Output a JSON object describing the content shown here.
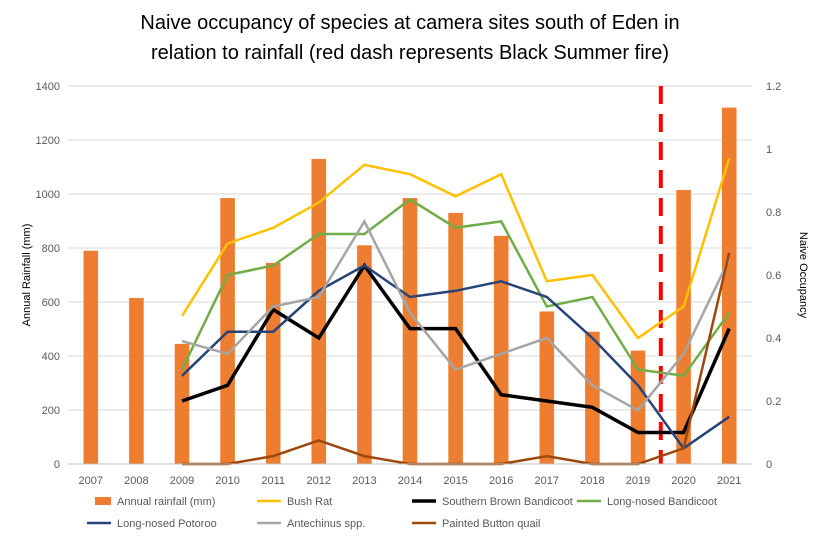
{
  "chart_data": {
    "type": "bar+line",
    "title_lines": [
      "Naive occupancy of species at camera sites south of Eden in",
      "relation to rainfall (red dash represents Black Summer fire)"
    ],
    "categories": [
      "2007",
      "2008",
      "2009",
      "2010",
      "2011",
      "2012",
      "2013",
      "2014",
      "2015",
      "2016",
      "2017",
      "2018",
      "2019",
      "2020",
      "2021"
    ],
    "ylabel_left": "Annual Rainfall (mm)",
    "ylabel_right": "Naive Occupancy",
    "ylim_left": [
      0,
      1400
    ],
    "ylim_right": [
      0,
      1.2
    ],
    "yticks_left": [
      "0",
      "200",
      "400",
      "600",
      "800",
      "1000",
      "1200",
      "1400"
    ],
    "yticks_right": [
      "0",
      "0.2",
      "0.4",
      "0.6",
      "0.8",
      "1",
      "1.2"
    ],
    "bars": {
      "name": "Annual rainfall (mm)",
      "color": "#ED7D31",
      "values": [
        790,
        615,
        445,
        985,
        745,
        1130,
        810,
        985,
        930,
        845,
        565,
        490,
        420,
        1015,
        1320
      ]
    },
    "series": [
      {
        "name": "Bush Rat",
        "color": "#FFC000",
        "width": 2.5,
        "values": [
          null,
          null,
          0.47,
          0.7,
          0.75,
          0.83,
          0.95,
          0.92,
          0.85,
          0.92,
          0.58,
          0.6,
          0.4,
          0.5,
          0.97
        ]
      },
      {
        "name": "Southern Brown Bandicoot",
        "color": "#000000",
        "width": 3.5,
        "values": [
          null,
          null,
          0.2,
          0.25,
          0.49,
          0.4,
          0.63,
          0.43,
          0.43,
          0.22,
          0.2,
          0.18,
          0.1,
          0.1,
          0.43
        ]
      },
      {
        "name": "Long-nosed Bandicoot",
        "color": "#70AD47",
        "width": 2.5,
        "values": [
          null,
          null,
          0.3,
          0.6,
          0.63,
          0.73,
          0.73,
          0.84,
          0.75,
          0.77,
          0.5,
          0.53,
          0.3,
          0.28,
          0.48
        ]
      },
      {
        "name": "Long-nosed Potoroo",
        "color": "#264478",
        "width": 2.5,
        "values": [
          null,
          null,
          0.28,
          0.42,
          0.42,
          0.55,
          0.63,
          0.53,
          0.55,
          0.58,
          0.53,
          0.4,
          0.25,
          0.05,
          0.15
        ]
      },
      {
        "name": "Antechinus spp.",
        "color": "#A5A5A5",
        "width": 2.5,
        "values": [
          null,
          null,
          0.39,
          0.35,
          0.5,
          0.53,
          0.77,
          0.48,
          0.3,
          0.35,
          0.4,
          0.25,
          0.17,
          0.35,
          0.65
        ]
      },
      {
        "name": "Painted Button quail",
        "color": "#9E480E",
        "width": 2.5,
        "values": [
          null,
          null,
          0.0,
          0.0,
          0.025,
          0.075,
          0.025,
          0.0,
          0.0,
          0.0,
          0.025,
          0.0,
          0.0,
          0.05,
          0.67
        ]
      }
    ],
    "fire_marker": {
      "between": [
        "2019",
        "2020"
      ],
      "color": "#FF0000",
      "style": "dashed"
    },
    "legend_position": "bottom",
    "legend": [
      "Annual rainfall (mm)",
      "Bush Rat",
      "Southern Brown Bandicoot",
      "Long-nosed Bandicoot",
      "Long-nosed Potoroo",
      "Antechinus spp.",
      "Painted Button quail"
    ],
    "grid": true
  }
}
